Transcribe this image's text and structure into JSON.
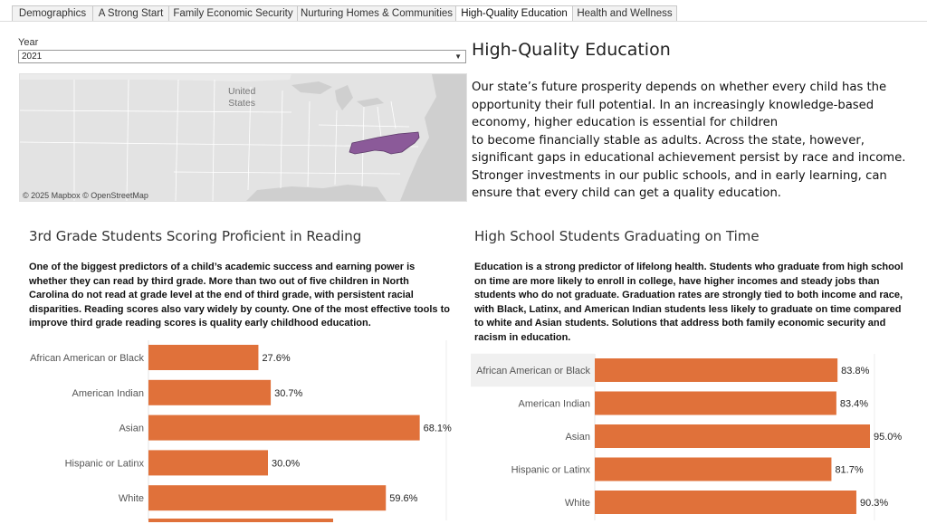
{
  "tabs": [
    {
      "label": "Demographics",
      "active": false
    },
    {
      "label": "A Strong Start",
      "active": false
    },
    {
      "label": "Family Economic Security",
      "active": false
    },
    {
      "label": "Nurturing Homes & Communities",
      "active": false
    },
    {
      "label": "High-Quality Education",
      "active": true
    },
    {
      "label": "Health and Wellness",
      "active": false
    }
  ],
  "filter": {
    "label": "Year",
    "value": "2021"
  },
  "map": {
    "country_label": "United\nStates",
    "credit": "© 2025 Mapbox  © OpenStreetMap",
    "highlight_color": "#8b5a99"
  },
  "page": {
    "title": "High-Quality Education",
    "intro": "Our state’s future prosperity depends on whether every child has the opportunity their full potential. In an increasingly knowledge-based economy, higher education is essential for children\nto become financially stable as adults. Across the state, however, significant gaps in educational achievement persist by race and income. Stronger investments in our public schools, and in early learning, can ensure that every child can get a quality education."
  },
  "reading": {
    "title": "3rd Grade Students Scoring Proficient in Reading",
    "desc": "One of the biggest predictors of a child’s academic success and earning power is whether they can read by third grade. More than two out of five children in North Carolina do not read at grade level at the end of third grade, with persistent racial\ndisparities. Reading scores also vary widely by county. One of the most effective tools to improve third grade reading scores is quality early childhood education."
  },
  "graduation": {
    "title": "High School Students Graduating on Time",
    "desc": "Education is a strong predictor of lifelong health. Students who graduate from high school on time are more likely to enroll in college, have higher incomes and steady jobs than students who do not graduate. Graduation rates are strongly tied to both income and race, with Black, Latinx, and American Indian students less likely to graduate on time compared to white and Asian students. Solutions that address both family economic security and racism in education."
  },
  "chart_data": [
    {
      "type": "bar",
      "orientation": "horizontal",
      "title": "3rd Grade Students Scoring Proficient in Reading",
      "categories": [
        "African American or Black",
        "American Indian",
        "Asian",
        "Hispanic or Latinx",
        "White"
      ],
      "values": [
        27.6,
        30.7,
        68.1,
        30.0,
        59.6
      ],
      "labels": [
        "27.6%",
        "30.7%",
        "68.1%",
        "30.0%",
        "59.6%"
      ],
      "unit": "%",
      "xlim": [
        0,
        100
      ],
      "bar_color": "#e0713a",
      "grid": false
    },
    {
      "type": "bar",
      "orientation": "horizontal",
      "title": "High School Students Graduating on Time",
      "categories": [
        "African American or Black",
        "American Indian",
        "Asian",
        "Hispanic or Latinx",
        "White"
      ],
      "values": [
        83.8,
        83.4,
        95.0,
        81.7,
        90.3
      ],
      "labels": [
        "83.8%",
        "83.4%",
        "95.0%",
        "81.7%",
        "90.3%"
      ],
      "unit": "%",
      "xlim": [
        0,
        100
      ],
      "bar_color": "#e0713a",
      "highlighted_row": "African American or Black",
      "grid": false
    }
  ]
}
